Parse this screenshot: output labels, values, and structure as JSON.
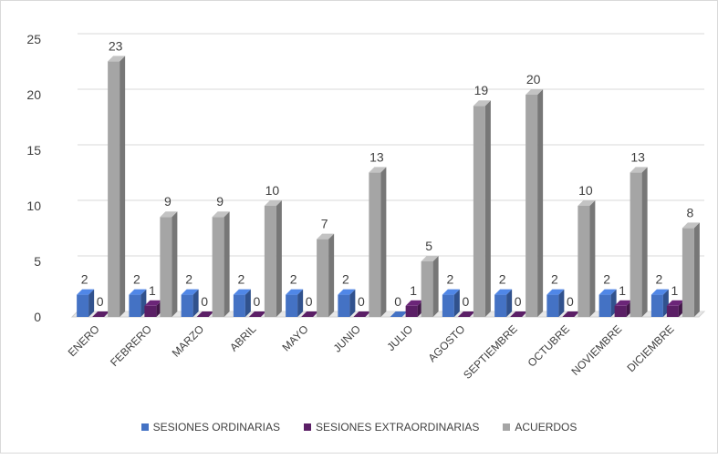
{
  "chart_data": {
    "type": "bar",
    "title": "",
    "xlabel": "",
    "ylabel": "",
    "ylim": [
      0,
      25
    ],
    "yticks": [
      0,
      5,
      10,
      15,
      20,
      25
    ],
    "grid": true,
    "legend_position": "bottom",
    "categories": [
      "ENERO",
      "FEBRERO",
      "MARZO",
      "ABRIL",
      "MAYO",
      "JUNIO",
      "JULIO",
      "AGOSTO",
      "SEPTIEMBRE",
      "OCTUBRE",
      "NOVIEMBRE",
      "DICIEMBRE"
    ],
    "series": [
      {
        "name": "SESIONES ORDINARIAS",
        "color": "#4472c4",
        "values": [
          2,
          2,
          2,
          2,
          2,
          2,
          0,
          2,
          2,
          2,
          2,
          2
        ]
      },
      {
        "name": "SESIONES EXTRAORDINARIAS",
        "color": "#5b1f66",
        "values": [
          0,
          1,
          0,
          0,
          0,
          0,
          1,
          0,
          0,
          0,
          1,
          1
        ]
      },
      {
        "name": "ACUERDOS",
        "color": "#a5a5a5",
        "values": [
          23,
          9,
          9,
          10,
          7,
          13,
          5,
          19,
          20,
          10,
          13,
          8
        ]
      }
    ]
  }
}
